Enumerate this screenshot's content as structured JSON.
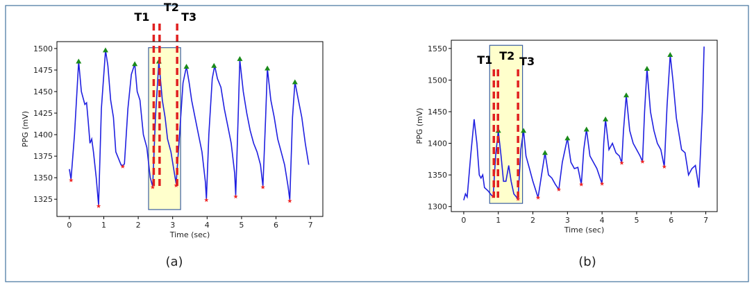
{
  "chart_data": [
    {
      "type": "line",
      "xlabel": "Time (sec)",
      "ylabel": "PPG (mV)",
      "caption": "(a)",
      "xlim": [
        -0.36,
        7.36
      ],
      "ylim": [
        1305,
        1508
      ],
      "xticks": [
        0,
        1,
        2,
        3,
        4,
        5,
        6,
        7
      ],
      "yticks": [
        1325,
        1350,
        1375,
        1400,
        1425,
        1450,
        1475,
        1500
      ],
      "highlight": {
        "x": [
          2.3,
          3.23
        ],
        "y": [
          1313,
          1501
        ],
        "color": "#ffffcc"
      },
      "annotations": [
        {
          "text": "T1",
          "x": 2.45
        },
        {
          "text": "T2",
          "x": 2.62
        },
        {
          "text": "T3",
          "x": 3.13
        }
      ],
      "series": [
        {
          "marker": "line",
          "color": "#1f1fe0",
          "x": [
            0,
            0.05,
            0.15,
            0.27,
            0.35,
            0.45,
            0.5,
            0.55,
            0.6,
            0.65,
            0.7,
            0.78,
            0.85,
            0.93,
            1.05,
            1.12,
            1.2,
            1.28,
            1.35,
            1.4,
            1.45,
            1.5,
            1.55,
            1.6,
            1.7,
            1.8,
            1.9,
            1.97,
            2.05,
            2.1,
            2.15,
            2.25,
            2.35,
            2.42,
            2.5,
            2.6,
            2.7,
            2.78,
            2.85,
            2.95,
            3.05,
            3.1,
            3.2,
            3.3,
            3.4,
            3.48,
            3.55,
            3.65,
            3.75,
            3.85,
            3.95,
            3.98,
            4.05,
            4.15,
            4.22,
            4.3,
            4.4,
            4.5,
            4.6,
            4.7,
            4.8,
            4.83,
            4.9,
            4.95,
            5.05,
            5.15,
            5.25,
            5.35,
            5.45,
            5.55,
            5.62,
            5.7,
            5.75,
            5.85,
            5.95,
            6.05,
            6.15,
            6.25,
            6.35,
            6.4,
            6.48,
            6.55,
            6.65,
            6.75,
            6.85,
            6.95
          ],
          "values": [
            1360,
            1348,
            1400,
            1485,
            1450,
            1435,
            1437,
            1415,
            1390,
            1395,
            1380,
            1350,
            1318,
            1430,
            1498,
            1480,
            1440,
            1420,
            1380,
            1375,
            1370,
            1365,
            1364,
            1366,
            1430,
            1470,
            1482,
            1450,
            1440,
            1420,
            1400,
            1385,
            1350,
            1340,
            1420,
            1485,
            1440,
            1420,
            1395,
            1380,
            1355,
            1343,
            1400,
            1460,
            1479,
            1460,
            1440,
            1420,
            1400,
            1380,
            1345,
            1325,
            1400,
            1465,
            1480,
            1465,
            1455,
            1430,
            1410,
            1390,
            1355,
            1329,
            1420,
            1487,
            1450,
            1425,
            1405,
            1390,
            1380,
            1365,
            1340,
            1420,
            1477,
            1440,
            1420,
            1395,
            1380,
            1365,
            1340,
            1324,
            1420,
            1461,
            1440,
            1420,
            1390,
            1365
          ]
        },
        {
          "marker": "triangle",
          "color": "#1a8a1a",
          "x": [
            0.27,
            1.05,
            1.9,
            2.6,
            3.4,
            4.2,
            4.95,
            5.75,
            6.55
          ],
          "values": [
            1485,
            1498,
            1482,
            1485,
            1479,
            1480,
            1488,
            1477,
            1461
          ]
        },
        {
          "marker": "star",
          "color": "#ee2222",
          "x": [
            0.05,
            0.85,
            1.55,
            2.42,
            3.1,
            3.98,
            4.83,
            5.62,
            6.4
          ],
          "values": [
            1347,
            1317,
            1363,
            1339,
            1341,
            1324,
            1328,
            1339,
            1323
          ]
        }
      ]
    },
    {
      "type": "line",
      "xlabel": "Time (sec)",
      "ylabel": "PPG (mV)",
      "caption": "(b)",
      "xlim": [
        -0.36,
        7.33
      ],
      "ylim": [
        1292,
        1563
      ],
      "xticks": [
        0,
        1,
        2,
        3,
        4,
        5,
        6,
        7
      ],
      "yticks": [
        1300,
        1350,
        1400,
        1450,
        1500,
        1550
      ],
      "highlight": {
        "x": [
          0.75,
          1.7
        ],
        "y": [
          1305,
          1555
        ],
        "color": "#ffffcc"
      },
      "annotations": [
        {
          "text": "T1",
          "x": 0.87
        },
        {
          "text": "T2",
          "x": 0.99
        },
        {
          "text": "T3",
          "x": 1.57
        }
      ],
      "series": [
        {
          "marker": "line",
          "color": "#1f1fe0",
          "x": [
            0,
            0.05,
            0.1,
            0.2,
            0.3,
            0.38,
            0.45,
            0.5,
            0.55,
            0.6,
            0.7,
            0.8,
            0.85,
            0.92,
            1.0,
            1.08,
            1.15,
            1.22,
            1.3,
            1.37,
            1.45,
            1.57,
            1.65,
            1.73,
            1.8,
            1.9,
            2.0,
            2.15,
            2.25,
            2.35,
            2.45,
            2.55,
            2.65,
            2.75,
            2.85,
            3.0,
            3.1,
            3.2,
            3.3,
            3.4,
            3.47,
            3.55,
            3.65,
            3.75,
            3.85,
            4.0,
            4.05,
            4.1,
            4.2,
            4.3,
            4.4,
            4.5,
            4.57,
            4.62,
            4.7,
            4.8,
            4.9,
            5.0,
            5.1,
            5.17,
            5.23,
            5.3,
            5.4,
            5.5,
            5.6,
            5.7,
            5.8,
            5.88,
            5.97,
            6.05,
            6.15,
            6.3,
            6.4,
            6.5,
            6.6,
            6.7,
            6.8,
            6.9,
            6.95
          ],
          "values": [
            1310,
            1320,
            1315,
            1380,
            1438,
            1400,
            1350,
            1345,
            1350,
            1330,
            1325,
            1318,
            1316,
            1380,
            1420,
            1380,
            1340,
            1340,
            1365,
            1340,
            1320,
            1312,
            1390,
            1420,
            1380,
            1360,
            1340,
            1314,
            1350,
            1385,
            1350,
            1345,
            1335,
            1327,
            1370,
            1408,
            1370,
            1360,
            1362,
            1335,
            1390,
            1422,
            1380,
            1370,
            1360,
            1336,
            1400,
            1438,
            1390,
            1400,
            1385,
            1380,
            1369,
            1420,
            1476,
            1420,
            1400,
            1390,
            1380,
            1371,
            1450,
            1518,
            1450,
            1420,
            1400,
            1390,
            1363,
            1460,
            1540,
            1500,
            1440,
            1390,
            1385,
            1350,
            1360,
            1365,
            1330,
            1450,
            1553
          ]
        },
        {
          "marker": "triangle",
          "color": "#1a8a1a",
          "x": [
            1.0,
            1.73,
            2.35,
            3.0,
            3.55,
            4.1,
            4.7,
            5.3,
            5.97
          ],
          "values": [
            1420,
            1420,
            1385,
            1408,
            1422,
            1438,
            1476,
            1518,
            1540
          ]
        },
        {
          "marker": "star",
          "color": "#ee2222",
          "x": [
            0.85,
            1.57,
            2.15,
            2.75,
            3.4,
            4.0,
            4.57,
            5.17,
            5.8
          ],
          "values": [
            1316,
            1312,
            1314,
            1327,
            1335,
            1336,
            1369,
            1371,
            1363
          ]
        }
      ]
    }
  ]
}
